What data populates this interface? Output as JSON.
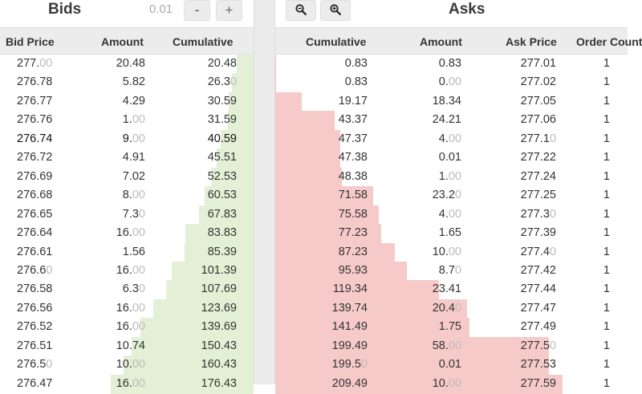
{
  "bids": {
    "title": "Bids",
    "step": "0.01",
    "minus_label": "-",
    "plus_label": "+",
    "columns": {
      "price": "Bid Price",
      "amount": "Amount",
      "cumulative": "Cumulative"
    },
    "rows": [
      {
        "price": "277.00",
        "amount": "20.48",
        "cumulative": "20.48"
      },
      {
        "price": "276.78",
        "amount": "5.82",
        "cumulative": "26.30"
      },
      {
        "price": "276.77",
        "amount": "4.29",
        "cumulative": "30.59"
      },
      {
        "price": "276.76",
        "amount": "1.00",
        "cumulative": "31.59"
      },
      {
        "price": "276.74",
        "amount": "9.00",
        "cumulative": "40.59"
      },
      {
        "price": "276.72",
        "amount": "4.91",
        "cumulative": "45.51"
      },
      {
        "price": "276.69",
        "amount": "7.02",
        "cumulative": "52.53"
      },
      {
        "price": "276.68",
        "amount": "8.00",
        "cumulative": "60.53"
      },
      {
        "price": "276.65",
        "amount": "7.30",
        "cumulative": "67.83"
      },
      {
        "price": "276.64",
        "amount": "16.00",
        "cumulative": "83.83"
      },
      {
        "price": "276.61",
        "amount": "1.56",
        "cumulative": "85.39"
      },
      {
        "price": "276.60",
        "amount": "16.00",
        "cumulative": "101.39"
      },
      {
        "price": "276.58",
        "amount": "6.30",
        "cumulative": "107.69"
      },
      {
        "price": "276.56",
        "amount": "16.00",
        "cumulative": "123.69"
      },
      {
        "price": "276.52",
        "amount": "16.00",
        "cumulative": "139.69"
      },
      {
        "price": "276.51",
        "amount": "10.74",
        "cumulative": "150.43"
      },
      {
        "price": "276.50",
        "amount": "10.00",
        "cumulative": "160.43"
      },
      {
        "price": "276.47",
        "amount": "16.00",
        "cumulative": "176.43"
      }
    ]
  },
  "asks": {
    "title": "Asks",
    "zoom_out_icon": "zoom-out-icon",
    "zoom_in_icon": "zoom-in-icon",
    "columns": {
      "cumulative": "Cumulative",
      "amount": "Amount",
      "price": "Ask Price",
      "count": "Order Count"
    },
    "rows": [
      {
        "cumulative": "0.83",
        "amount": "0.83",
        "price": "277.01",
        "count": "1"
      },
      {
        "cumulative": "0.83",
        "amount": "0.00",
        "price": "277.02",
        "count": "1"
      },
      {
        "cumulative": "19.17",
        "amount": "18.34",
        "price": "277.05",
        "count": "1"
      },
      {
        "cumulative": "43.37",
        "amount": "24.21",
        "price": "277.06",
        "count": "1"
      },
      {
        "cumulative": "47.37",
        "amount": "4.00",
        "price": "277.10",
        "count": "1"
      },
      {
        "cumulative": "47.38",
        "amount": "0.01",
        "price": "277.22",
        "count": "1"
      },
      {
        "cumulative": "48.38",
        "amount": "1.00",
        "price": "277.24",
        "count": "1"
      },
      {
        "cumulative": "71.58",
        "amount": "23.20",
        "price": "277.25",
        "count": "1"
      },
      {
        "cumulative": "75.58",
        "amount": "4.00",
        "price": "277.30",
        "count": "1"
      },
      {
        "cumulative": "77.23",
        "amount": "1.65",
        "price": "277.39",
        "count": "1"
      },
      {
        "cumulative": "87.23",
        "amount": "10.00",
        "price": "277.40",
        "count": "1"
      },
      {
        "cumulative": "95.93",
        "amount": "8.70",
        "price": "277.42",
        "count": "1"
      },
      {
        "cumulative": "119.34",
        "amount": "23.41",
        "price": "277.44",
        "count": "1"
      },
      {
        "cumulative": "139.74",
        "amount": "20.40",
        "price": "277.47",
        "count": "1"
      },
      {
        "cumulative": "141.49",
        "amount": "1.75",
        "price": "277.49",
        "count": "1"
      },
      {
        "cumulative": "199.49",
        "amount": "58.00",
        "price": "277.50",
        "count": "1"
      },
      {
        "cumulative": "199.50",
        "amount": "0.01",
        "price": "277.53",
        "count": "1"
      },
      {
        "cumulative": "209.49",
        "amount": "10.00",
        "price": "277.59",
        "count": "1"
      }
    ]
  },
  "colors": {
    "bid_depth": "#e3f0d5",
    "ask_depth": "#f7caca",
    "header_bg": "#ececec",
    "dim_digits": "#bbbbbb"
  },
  "highlighted_bid_index": 4
}
